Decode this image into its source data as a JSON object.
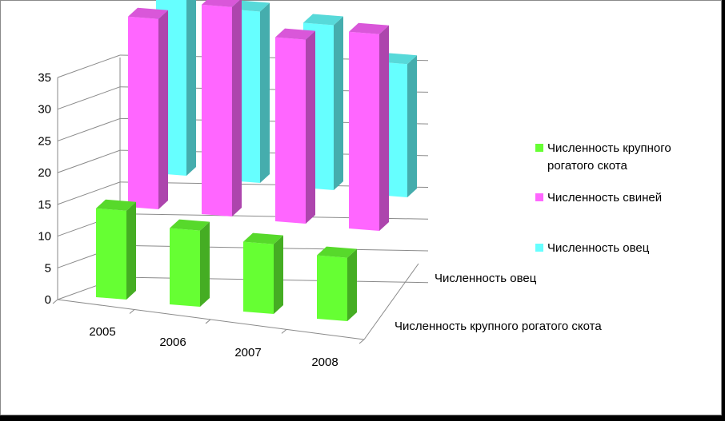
{
  "chart_data": {
    "type": "bar",
    "subtype": "3d-clustered-depth",
    "categories": [
      "2005",
      "2006",
      "2007",
      "2008"
    ],
    "depth_labels": [
      "Численность овец",
      "Численность крупного рогатого скота"
    ],
    "series": [
      {
        "name": "Численность крупного рогатого скота",
        "values": [
          14,
          12,
          11,
          10
        ],
        "color": "#66ff33"
      },
      {
        "name": "Численность свиней",
        "values": [
          30,
          33,
          29,
          31
        ],
        "color": "#ff66ff"
      },
      {
        "name": "Численность овец",
        "values": [
          35,
          27,
          26,
          21
        ],
        "color": "#66ffff"
      }
    ],
    "y_ticks": [
      "0",
      "5",
      "10",
      "15",
      "20",
      "25",
      "30",
      "35"
    ],
    "ylim": [
      0,
      35
    ],
    "grid": true,
    "legend_position": "right"
  }
}
